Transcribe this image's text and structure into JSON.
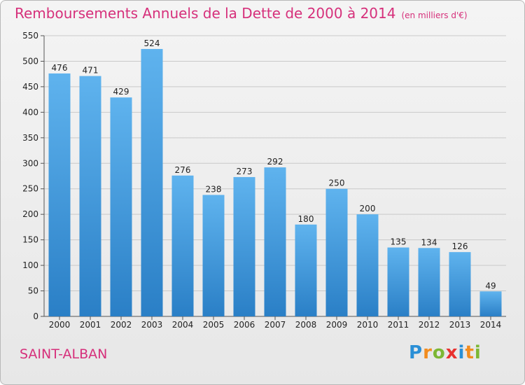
{
  "header": {
    "title": "Remboursements Annuels de la Dette de 2000 à 2014",
    "unit": "(en milliers d'€)"
  },
  "commune": "SAINT-ALBAN",
  "logo": {
    "letters": [
      "P",
      "r",
      "o",
      "x",
      "i",
      "t",
      "i"
    ],
    "colors": [
      "#2a8fd6",
      "#f28c1e",
      "#7cb734",
      "#e8312f",
      "#2a8fd6",
      "#f28c1e",
      "#7cb734"
    ]
  },
  "colors": {
    "title": "#d6307b",
    "bar_light": "#5fb3ee",
    "bar_dark": "#2a7fc6",
    "grid": "#c9c9c9"
  },
  "chart_data": {
    "type": "bar",
    "title": "Remboursements Annuels de la Dette de 2000 à 2014",
    "xlabel": "",
    "ylabel": "",
    "ylim": [
      0,
      550
    ],
    "yticks": [
      0,
      50,
      100,
      150,
      200,
      250,
      300,
      350,
      400,
      450,
      500,
      550
    ],
    "grid": true,
    "categories": [
      "2000",
      "2001",
      "2002",
      "2003",
      "2004",
      "2005",
      "2006",
      "2007",
      "2008",
      "2009",
      "2010",
      "2011",
      "2012",
      "2013",
      "2014"
    ],
    "values": [
      476,
      471,
      429,
      524,
      276,
      238,
      273,
      292,
      180,
      250,
      200,
      135,
      134,
      126,
      49
    ]
  }
}
